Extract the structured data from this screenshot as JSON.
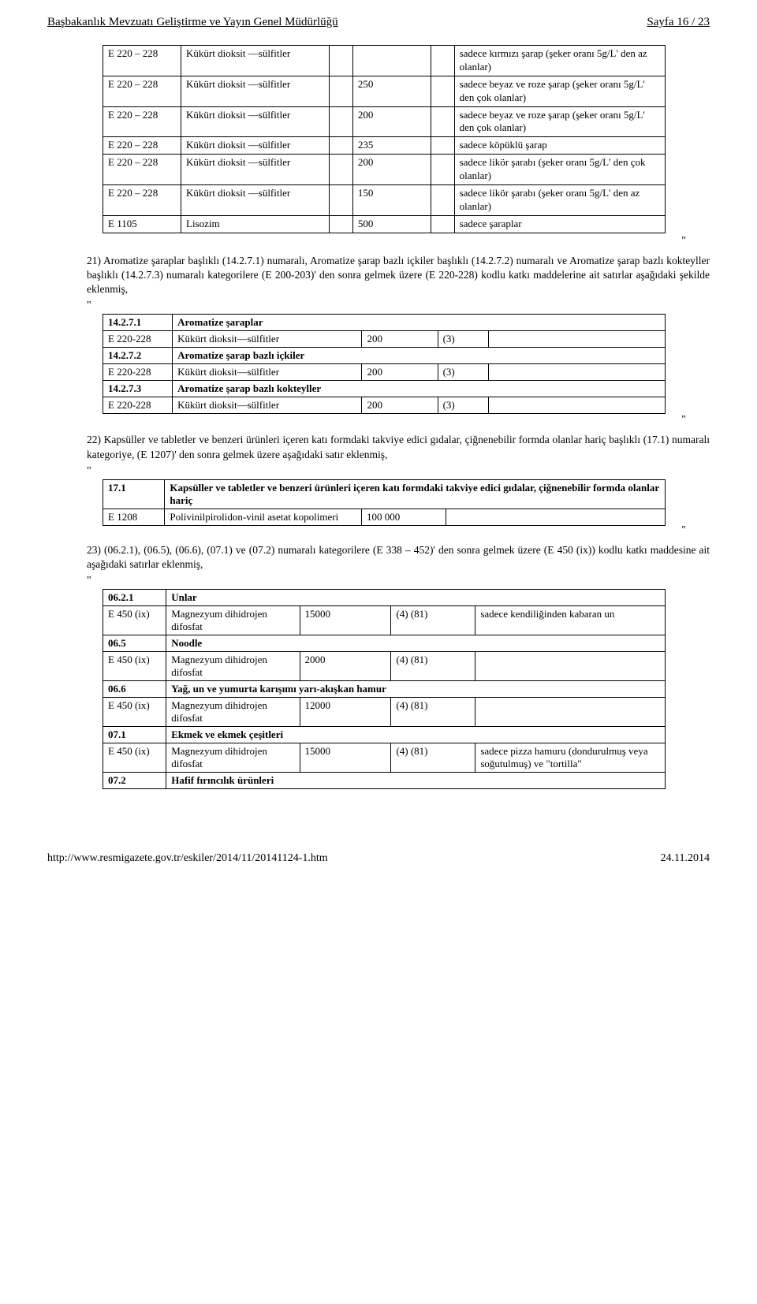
{
  "header": {
    "left": "Başbakanlık Mevzuatı Geliştirme ve Yayın Genel Müdürlüğü",
    "right": "Sayfa 16 / 23"
  },
  "sulfite_table": [
    {
      "code": "E 220 – 228",
      "name": "Kükürt dioksit —sülfitler",
      "amt": "",
      "note": "sadece kırmızı şarap (şeker oranı 5g/L' den az olanlar)"
    },
    {
      "code": "E 220 – 228",
      "name": "Kükürt dioksit —sülfitler",
      "amt": "250",
      "note": "sadece beyaz ve roze şarap (şeker oranı 5g/L' den çok olanlar)"
    },
    {
      "code": "E 220 – 228",
      "name": "Kükürt dioksit —sülfitler",
      "amt": "200",
      "note": "sadece beyaz ve roze şarap (şeker oranı 5g/L' den çok olanlar)"
    },
    {
      "code": "E 220 – 228",
      "name": "Kükürt dioksit —sülfitler",
      "amt": "235",
      "note": "sadece köpüklü şarap"
    },
    {
      "code": "E 220 – 228",
      "name": "Kükürt dioksit —sülfitler",
      "amt": "200",
      "note": "sadece likör şarabı (şeker oranı 5g/L' den çok olanlar)"
    },
    {
      "code": "E 220 – 228",
      "name": "Kükürt dioksit —sülfitler",
      "amt": "150",
      "note": "sadece likör şarabı (şeker oranı 5g/L' den az olanlar)"
    },
    {
      "code": "E 1105",
      "name": "Lisozim",
      "amt": "500",
      "note": "sadece şaraplar"
    }
  ],
  "quote_end": "\"",
  "p21": "21) Aromatize şaraplar başlıklı (14.2.7.1) numaralı, Aromatize şarap bazlı içkiler başlıklı (14.2.7.2) numaralı ve Aromatize şarap bazlı kokteyller başlıklı (14.2.7.3) numaralı kategorilere (E 200-203)' den sonra gelmek üzere (E 220-228) kodlu katkı maddelerine ait satırlar aşağıdaki şekilde eklenmiş,",
  "quote_start": "\"",
  "aroma": {
    "sec1": {
      "num": "14.2.7.1",
      "title": "Aromatize şaraplar",
      "code": "E 220-228",
      "name": "Kükürt dioksit—sülfitler",
      "amt": "200",
      "paren": "(3)"
    },
    "sec2": {
      "num": "14.2.7.2",
      "title": "Aromatize şarap bazlı içkiler",
      "code": "E 220-228",
      "name": "Kükürt dioksit—sülfitler",
      "amt": "200",
      "paren": "(3)"
    },
    "sec3": {
      "num": "14.2.7.3",
      "title": "Aromatize şarap bazlı kokteyller",
      "code": "E 220-228",
      "name": "Kükürt dioksit—sülfitler",
      "amt": "200",
      "paren": "(3)"
    }
  },
  "p22": "22) Kapsüller ve tabletler ve benzeri ürünleri içeren katı formdaki takviye edici gıdalar, çiğnenebilir formda olanlar hariç başlıklı (17.1) numaralı kategoriye, (E 1207)' den sonra gelmek üzere aşağıdaki satır eklenmiş,",
  "kapsul": {
    "num": "17.1",
    "title": "Kapsüller ve tabletler ve benzeri ürünleri içeren katı formdaki takviye edici gıdalar, çiğnenebilir formda olanlar hariç",
    "code": "E 1208",
    "name": "Polivinilpirolidon-vinil asetat kopolimeri",
    "amt": "100 000"
  },
  "p23": "23) (06.2.1), (06.5), (06.6), (07.1) ve (07.2) numaralı kategorilere (E 338 – 452)' den sonra gelmek üzere (E 450 (ix)) kodlu katkı maddesine ait aşağıdaki satırlar eklenmiş,",
  "unlar": [
    {
      "num": "06.2.1",
      "title": "Unlar",
      "code": "E 450 (ix)",
      "name": "Magnezyum dihidrojen difosfat",
      "amt": "15000",
      "paren": "(4) (81)",
      "note": "sadece kendiliğinden kabaran un"
    },
    {
      "num": "06.5",
      "title": "Noodle",
      "code": "E 450 (ix)",
      "name": "Magnezyum dihidrojen difosfat",
      "amt": "2000",
      "paren": "(4) (81)",
      "note": ""
    },
    {
      "num": "06.6",
      "title": "Yağ, un ve yumurta karışımı yarı-akışkan hamur",
      "code": "E 450 (ix)",
      "name": "Magnezyum dihidrojen difosfat",
      "amt": "12000",
      "paren": "(4) (81)",
      "note": ""
    },
    {
      "num": "07.1",
      "title": "Ekmek ve ekmek çeşitleri",
      "code": "E 450 (ix)",
      "name": "Magnezyum dihidrojen difosfat",
      "amt": "15000",
      "paren": "(4) (81)",
      "note": "sadece pizza hamuru (dondurulmuş veya soğutulmuş) ve \"tortilla\""
    },
    {
      "num": "07.2",
      "title": "Hafif fırıncılık ürünleri"
    }
  ],
  "footer": {
    "left": "http://www.resmigazete.gov.tr/eskiler/2014/11/20141124-1.htm",
    "right": "24.11.2014"
  }
}
